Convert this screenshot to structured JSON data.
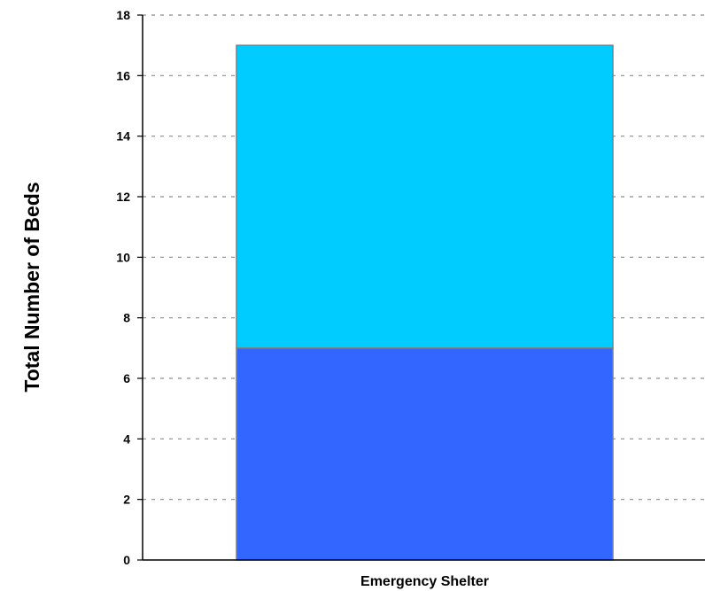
{
  "chart_data": {
    "type": "bar",
    "stacked": true,
    "title": "",
    "xlabel": "",
    "ylabel": "Total Number of Beds",
    "categories": [
      "Emergency Shelter"
    ],
    "series": [
      {
        "values": [
          7
        ],
        "color": "#3366FF"
      },
      {
        "values": [
          10
        ],
        "color": "#00CCFF"
      }
    ],
    "ylim": [
      0,
      18
    ],
    "y_ticks": [
      0,
      2,
      4,
      6,
      8,
      10,
      12,
      14,
      16,
      18
    ],
    "grid": true,
    "grid_style": "dashed",
    "legend": "none"
  }
}
